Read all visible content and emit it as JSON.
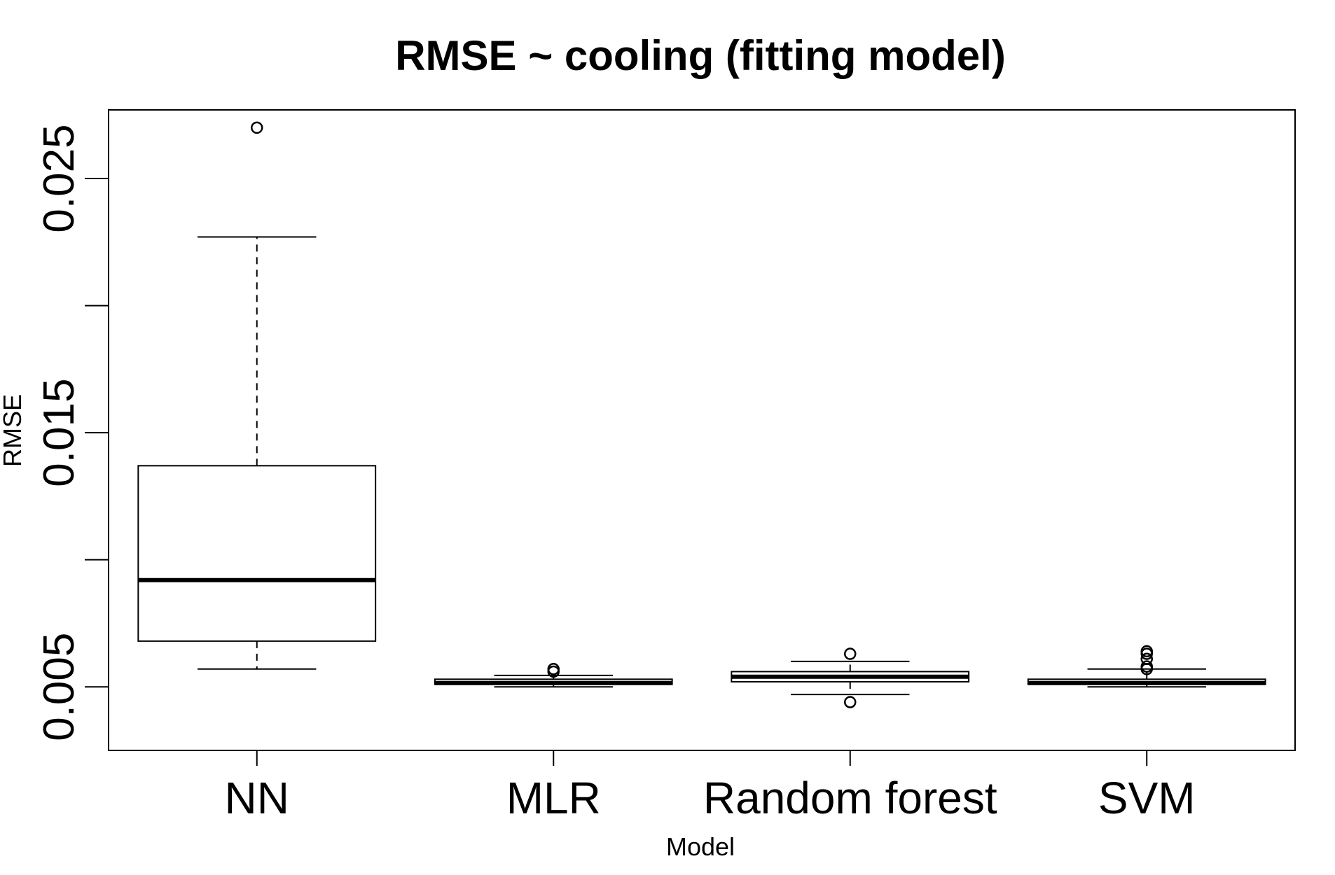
{
  "chart_data": {
    "type": "boxplot",
    "title": "RMSE ~ cooling (fitting model)",
    "xlabel": "Model",
    "ylabel": "RMSE",
    "ylim": [
      0.0025,
      0.0277
    ],
    "yticks": [
      0.005,
      0.01,
      0.015,
      0.02,
      0.025
    ],
    "ytick_labels": [
      "0.005",
      "",
      "0.015",
      "",
      "0.025"
    ],
    "grid": false,
    "categories": [
      "NN",
      "MLR",
      "Random forest",
      "SVM"
    ],
    "boxes": [
      {
        "name": "NN",
        "whisker_low": 0.0057,
        "q1": 0.0068,
        "median": 0.0092,
        "q3": 0.0137,
        "whisker_high": 0.0227,
        "outliers": [
          0.027
        ]
      },
      {
        "name": "MLR",
        "whisker_low": 0.005,
        "q1": 0.0051,
        "median": 0.00515,
        "q3": 0.0053,
        "whisker_high": 0.00545,
        "outliers": [
          0.0057,
          0.0056
        ]
      },
      {
        "name": "Random forest",
        "whisker_low": 0.0047,
        "q1": 0.0052,
        "median": 0.0054,
        "q3": 0.0056,
        "whisker_high": 0.006,
        "outliers": [
          0.0063,
          0.0044
        ]
      },
      {
        "name": "SVM",
        "whisker_low": 0.005,
        "q1": 0.0051,
        "median": 0.00515,
        "q3": 0.0053,
        "whisker_high": 0.0057,
        "outliers": [
          0.0064,
          0.0063,
          0.0061,
          0.0058,
          0.0057
        ]
      }
    ]
  }
}
